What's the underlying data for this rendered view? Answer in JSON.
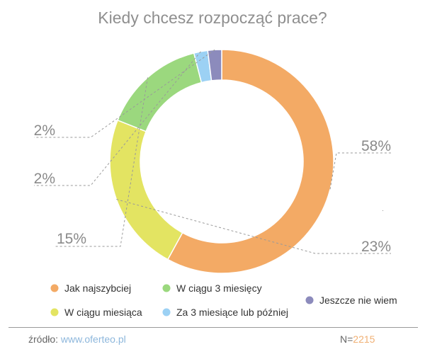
{
  "chart_data": {
    "type": "donut",
    "title": "Kiedy chcesz rozpocząć prace?",
    "series": [
      {
        "name": "Jak najszybciej",
        "value": 58,
        "label": "58%",
        "color": "#f3aa65"
      },
      {
        "name": "W ciągu miesiąca",
        "value": 23,
        "label": "23%",
        "color": "#e3e462"
      },
      {
        "name": "W ciągu 3 miesięcy",
        "value": 15,
        "label": "15%",
        "color": "#9bd87e"
      },
      {
        "name": "Za 3 miesiące lub później",
        "value": 2,
        "label": "2%",
        "color": "#9cd1f4"
      },
      {
        "name": "Jeszcze nie wiem",
        "value": 2,
        "label": "2%",
        "color": "#8c8bbc"
      }
    ],
    "legend_position": "bottom"
  },
  "footer": {
    "source_label": "źródło:",
    "source_url": "www.oferteo.pl",
    "n_label": "N=",
    "n_value": "2215"
  }
}
